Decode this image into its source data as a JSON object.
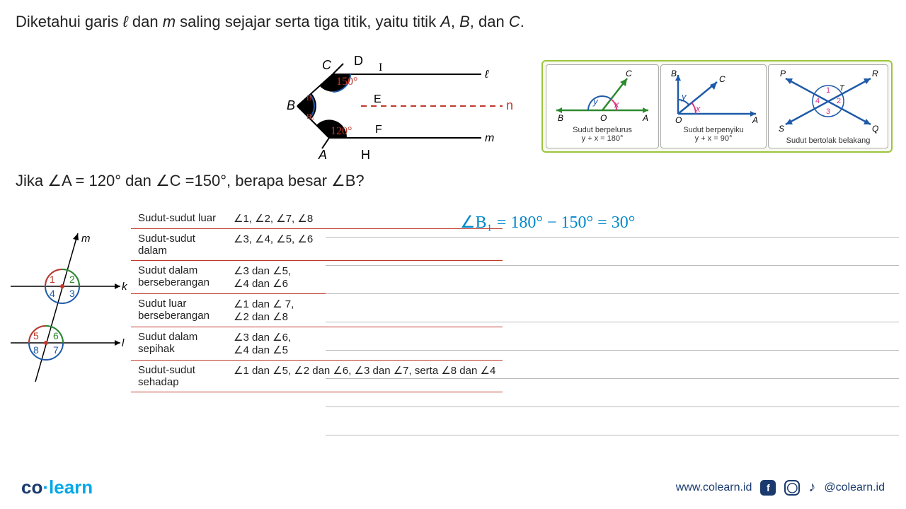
{
  "problem": {
    "line1_pre": "Diketahui garis ",
    "line1_l": "ℓ",
    "line1_mid1": " dan ",
    "line1_m": "m",
    "line1_mid2": " saling sejajar serta tiga titik, yaitu titik ",
    "line1_A": "A",
    "line1_c1": ", ",
    "line1_B": "B",
    "line1_c2": ", dan ",
    "line1_C": "C",
    "line1_end": ". "
  },
  "question": {
    "pre": "Jika ∠",
    "A": "A",
    "valA": " = 120° dan ∠",
    "C": "C",
    "valC": " =150°, berapa besar ∠",
    "B": "B",
    "end": "?"
  },
  "main_diag": {
    "labels": {
      "A": "A",
      "B": "B",
      "C": "C",
      "D": "D",
      "E": "E",
      "F": "F",
      "H": "H",
      "I": "I",
      "l": "ℓ",
      "m": "m",
      "n": "n"
    },
    "angles": {
      "top": "150°",
      "bot": "120°",
      "B1": "B₁",
      "B2": "B₂"
    },
    "colors": {
      "red": "#c0392b",
      "blue": "#1e5aa8"
    }
  },
  "ref": {
    "box1": {
      "caption": "Sudut berpelurus",
      "formula": "y + x = 180°",
      "labels": {
        "B": "B",
        "O": "O",
        "A": "A",
        "C": "C",
        "x": "x",
        "y": "y"
      }
    },
    "box2": {
      "caption": "Sudut berpenyiku",
      "formula": "y + x = 90°",
      "labels": {
        "B": "B",
        "O": "O",
        "A": "A",
        "C": "C",
        "x": "x",
        "y": "y"
      }
    },
    "box3": {
      "caption": "Sudut bertolak belakang",
      "labels": {
        "P": "P",
        "Q": "Q",
        "R": "R",
        "S": "S",
        "T": "T",
        "1": "1",
        "2": "2",
        "3": "3",
        "4": "4"
      }
    }
  },
  "parallel": {
    "labels": {
      "m": "m",
      "k": "k",
      "l": "l",
      "1": "1",
      "2": "2",
      "3": "3",
      "4": "4",
      "5": "5",
      "6": "6",
      "7": "7",
      "8": "8"
    }
  },
  "table": {
    "rows": [
      {
        "name": "Sudut-sudut luar",
        "angles": "∠1, ∠2, ∠7, ∠8"
      },
      {
        "name": "Sudut-sudut dalam",
        "angles": "∠3, ∠4, ∠5, ∠6"
      },
      {
        "name": "Sudut dalam berseberangan",
        "angles": "∠3 dan ∠5,\n∠4 dan ∠6"
      },
      {
        "name": "Sudut luar berseberangan",
        "angles": "∠1 dan ∠ 7,\n∠2 dan ∠8"
      },
      {
        "name": "Sudut dalam sepihak",
        "angles": "∠3 dan ∠6,\n∠4 dan ∠5"
      },
      {
        "name": "Sudut-sudut sehadap",
        "angles": "∠1 dan ∠5, ∠2 dan ∠6, ∠3 dan ∠7, serta ∠8 dan ∠4"
      }
    ]
  },
  "handwritten": {
    "eq1": "∠B₁ = 180° − 150° = 30°"
  },
  "ruled_lines": [
    335,
    375,
    415,
    455,
    495,
    535,
    575,
    615
  ],
  "footer": {
    "url": "www.colearn.id",
    "handle": "@colearn.id",
    "logo_co": "co",
    "logo_learn": "learn"
  }
}
